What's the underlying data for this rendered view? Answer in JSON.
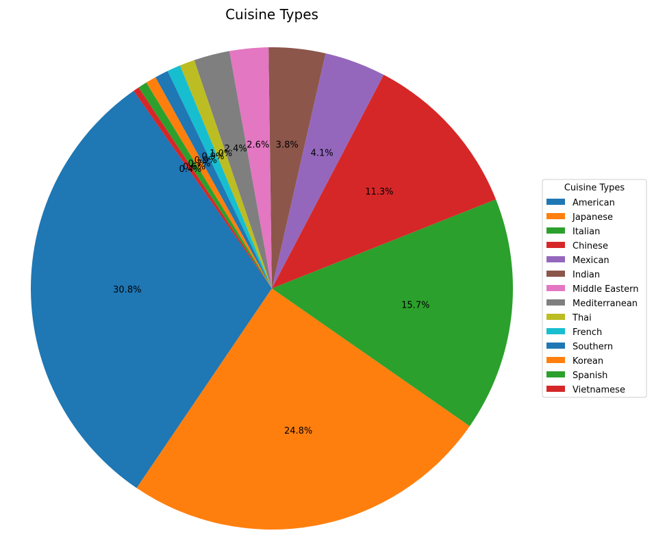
{
  "chart_data": {
    "type": "pie",
    "title": "Cuisine Types",
    "legend_title": "Cuisine Types",
    "legend_position": "right",
    "start_angle_deg": 125,
    "direction": "counterclockwise",
    "slices": [
      {
        "label": "American",
        "value": 30.8,
        "pct_label": "30.8%",
        "color": "#1f77b4"
      },
      {
        "label": "Japanese",
        "value": 24.8,
        "pct_label": "24.8%",
        "color": "#ff7f0e"
      },
      {
        "label": "Italian",
        "value": 15.7,
        "pct_label": "15.7%",
        "color": "#2ca02c"
      },
      {
        "label": "Chinese",
        "value": 11.3,
        "pct_label": "11.3%",
        "color": "#d62728"
      },
      {
        "label": "Mexican",
        "value": 4.1,
        "pct_label": "4.1%",
        "color": "#9467bd"
      },
      {
        "label": "Indian",
        "value": 3.8,
        "pct_label": "3.8%",
        "color": "#8c564b"
      },
      {
        "label": "Middle Eastern",
        "value": 2.6,
        "pct_label": "2.6%",
        "color": "#e377c2"
      },
      {
        "label": "Mediterranean",
        "value": 2.4,
        "pct_label": "2.4%",
        "color": "#7f7f7f"
      },
      {
        "label": "Thai",
        "value": 1.0,
        "pct_label": "1.0%",
        "color": "#bcbd22"
      },
      {
        "label": "French",
        "value": 0.9,
        "pct_label": "0.9%",
        "color": "#17becf"
      },
      {
        "label": "Southern",
        "value": 0.9,
        "pct_label": "0.9%",
        "color": "#1f77b4"
      },
      {
        "label": "Korean",
        "value": 0.7,
        "pct_label": "0.7%",
        "color": "#ff7f0e"
      },
      {
        "label": "Spanish",
        "value": 0.6,
        "pct_label": "0.6%",
        "color": "#2ca02c"
      },
      {
        "label": "Vietnamese",
        "value": 0.4,
        "pct_label": "0.4%",
        "color": "#d62728"
      }
    ]
  }
}
